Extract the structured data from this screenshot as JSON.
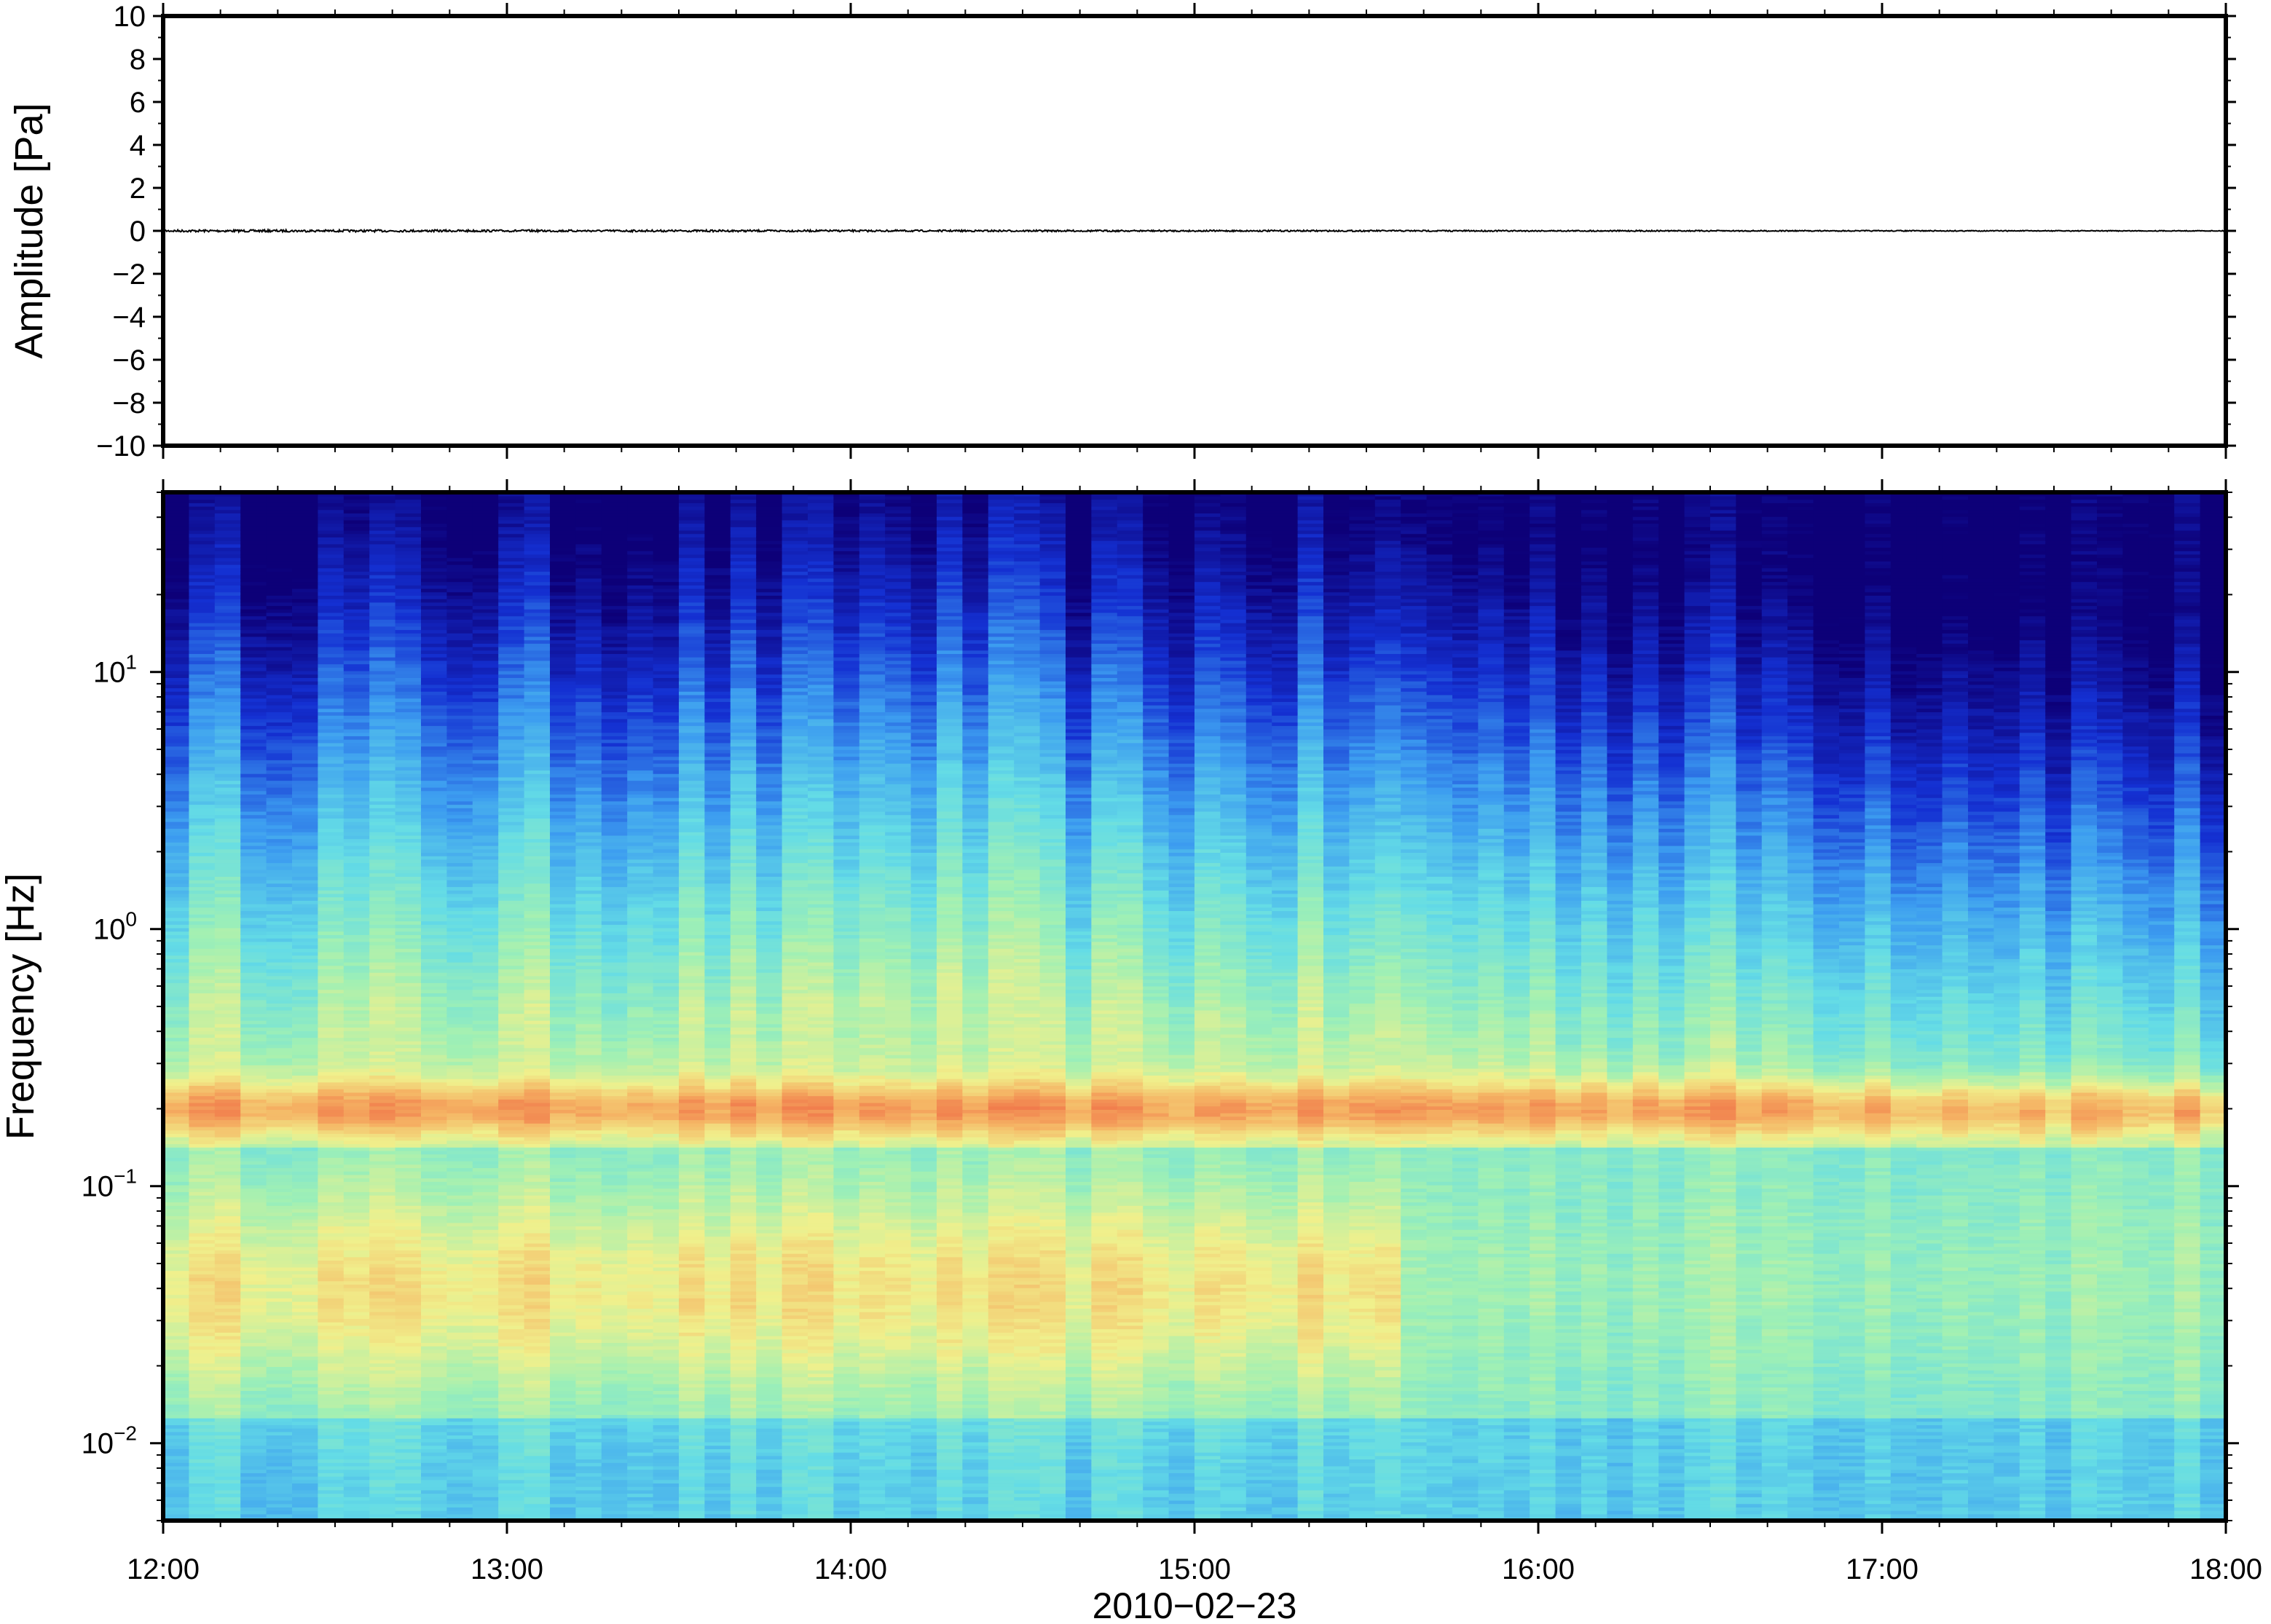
{
  "chart_data": [
    {
      "type": "line",
      "panel": "waveform",
      "ylabel": "Amplitude [Pa]",
      "xlabel": "",
      "ylim": [
        -10,
        10
      ],
      "y_ticks": [
        10,
        8,
        6,
        4,
        2,
        0,
        -2,
        -4,
        -6,
        -8,
        -10
      ],
      "y_tick_labels": [
        "10",
        "8",
        "6",
        "4",
        "2",
        "0",
        "−2",
        "−4",
        "−6",
        "−8",
        "−10"
      ],
      "xlim": [
        "12:00",
        "18:00"
      ],
      "series": [
        {
          "color": "#000000",
          "x": [
            "12:00",
            "12:30",
            "13:00",
            "13:30",
            "14:00",
            "14:30",
            "15:00",
            "15:30",
            "16:00",
            "16:30",
            "17:00",
            "17:30",
            "18:00"
          ],
          "values": [
            0,
            0,
            0,
            0,
            0,
            0,
            0,
            0,
            0,
            0,
            0,
            0,
            0
          ]
        }
      ],
      "grid": false
    },
    {
      "type": "heatmap",
      "panel": "spectrogram",
      "ylabel": "Frequency [Hz]",
      "xlabel": "2010−02−23",
      "y_scale": "log",
      "ylim": [
        0.005,
        50
      ],
      "y_tick_labels": [
        {
          "value": 10,
          "base": "10",
          "exp": "1"
        },
        {
          "value": 1,
          "base": "10",
          "exp": "0"
        },
        {
          "value": 0.1,
          "base": "10",
          "exp": "−1"
        },
        {
          "value": 0.01,
          "base": "10",
          "exp": "−2"
        }
      ],
      "x_tick_labels": [
        "12:00",
        "13:00",
        "14:00",
        "15:00",
        "16:00",
        "17:00",
        "18:00"
      ],
      "xlim": [
        "12:00",
        "18:00"
      ],
      "colormap": "rainbow (dark blue low → red high)",
      "colors": [
        "#0d0078",
        "#1430d2",
        "#3c9cf0",
        "#64dce6",
        "#a0f0b4",
        "#f0f08c",
        "#f5b464",
        "#f06e46"
      ],
      "ridge_frequency_hz": 0.2,
      "grid": false
    }
  ]
}
